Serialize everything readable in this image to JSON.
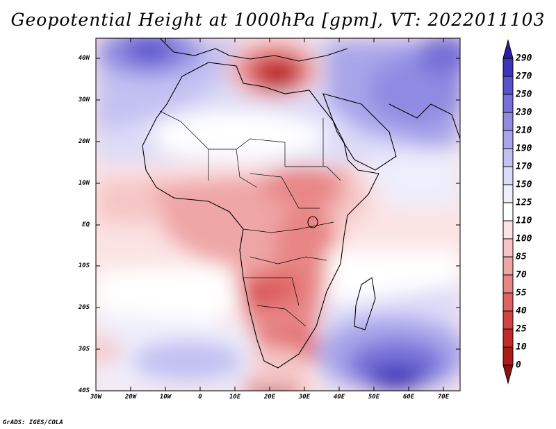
{
  "title": "Geopotential Height at 1000hPa [gpm], VT: 2022011103",
  "lat_labels": [
    "40N",
    "30N",
    "20N",
    "10N",
    "EQ",
    "10S",
    "20S",
    "30S",
    "40S"
  ],
  "lon_labels": [
    "30W",
    "20W",
    "10W",
    "0",
    "10E",
    "20E",
    "30E",
    "40E",
    "50E",
    "60E",
    "70E"
  ],
  "colorbar": {
    "levels": [
      "290",
      "270",
      "250",
      "230",
      "210",
      "190",
      "170",
      "150",
      "125",
      "110",
      "100",
      "85",
      "70",
      "55",
      "40",
      "25",
      "10",
      "0"
    ],
    "colors": [
      "#2a1fa0",
      "#3d34b8",
      "#5a52cc",
      "#7670d8",
      "#908be2",
      "#a9a5ea",
      "#c3c1f2",
      "#dcdbf8",
      "#eeeefc",
      "#ffffff",
      "#fbe3e3",
      "#f6c6c6",
      "#efa6a6",
      "#e88585",
      "#df6363",
      "#d44343",
      "#c42a2a",
      "#ad1a1a",
      "#8e0f0f"
    ]
  },
  "credit": "GrADS: IGES/COLA"
}
